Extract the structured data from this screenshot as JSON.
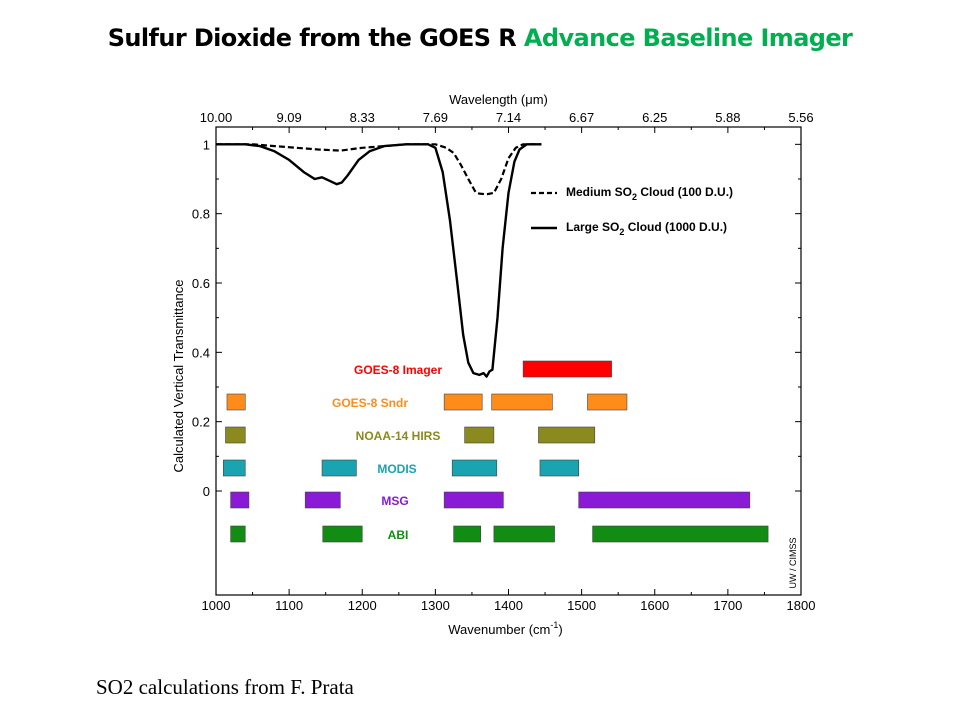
{
  "slide": {
    "title_main": "Sulfur Dioxide from the GOES R ",
    "title_accent": "Advance Baseline Imager",
    "credit": "SO2 calculations from F. Prata"
  },
  "colors": {
    "title_accent": "#00b050",
    "goes8_imager": "#ff0000",
    "goes8_sndr": "#ff8c1a",
    "noaa14_hirs": "#8a8a1e",
    "modis": "#1aa3b0",
    "msg": "#8a1ad6",
    "abi": "#128c12"
  },
  "chart_data": {
    "type": "line",
    "xlabel": "Wavenumber (cm",
    "xlabel_sup": "-1",
    "xlabel_end": ")",
    "ylabel": "Calculated Vertical Transmittance",
    "xlim": [
      1000,
      1800
    ],
    "ylim": [
      -0.3,
      1.05
    ],
    "x_ticks": [
      1000,
      1100,
      1200,
      1300,
      1400,
      1500,
      1600,
      1700,
      1800
    ],
    "x_tick_labels": [
      "1000",
      "1100",
      "1200",
      "1300",
      "1400",
      "1500",
      "1600",
      "1700",
      "1800"
    ],
    "y_ticks": [
      0,
      0.2,
      0.4,
      0.6,
      0.8,
      1
    ],
    "y_tick_labels": [
      "0",
      "0.2",
      "0.4",
      "0.6",
      "0.8",
      "1"
    ],
    "top_axis": {
      "label": "Wavelength (μm)",
      "ticks": [
        1000,
        1100,
        1200,
        1300,
        1400,
        1500,
        1600,
        1700,
        1800
      ],
      "tick_labels": [
        "10.00",
        "9.09",
        "8.33",
        "7.69",
        "7.14",
        "6.67",
        "6.25",
        "5.88",
        "5.56"
      ]
    },
    "series": [
      {
        "name_prefix": "Medium SO",
        "name_sub": "2",
        "name_suffix": " Cloud (100 D.U.)",
        "style": "dashed",
        "x": [
          1000,
          1050,
          1080,
          1110,
          1140,
          1170,
          1200,
          1230,
          1260,
          1300,
          1315,
          1325,
          1335,
          1345,
          1355,
          1360,
          1370,
          1380,
          1390,
          1400,
          1410,
          1420,
          1445
        ],
        "y": [
          1.0,
          1.0,
          0.995,
          0.99,
          0.985,
          0.982,
          0.99,
          0.995,
          1.0,
          1.0,
          0.99,
          0.975,
          0.94,
          0.9,
          0.862,
          0.858,
          0.856,
          0.86,
          0.9,
          0.96,
          0.99,
          1.0,
          1.0
        ]
      },
      {
        "name_prefix": "Large SO",
        "name_sub": "2",
        "name_suffix": " Cloud (1000 D.U.)",
        "style": "solid",
        "x": [
          1000,
          1040,
          1060,
          1080,
          1100,
          1120,
          1135,
          1145,
          1155,
          1165,
          1172,
          1180,
          1195,
          1210,
          1230,
          1260,
          1290,
          1300,
          1310,
          1320,
          1330,
          1338,
          1345,
          1352,
          1360,
          1366,
          1370,
          1374,
          1378,
          1385,
          1392,
          1400,
          1408,
          1415,
          1425,
          1445
        ],
        "y": [
          1.0,
          1.0,
          0.995,
          0.98,
          0.955,
          0.92,
          0.9,
          0.905,
          0.895,
          0.885,
          0.89,
          0.91,
          0.955,
          0.98,
          0.995,
          1.0,
          1.0,
          0.99,
          0.92,
          0.78,
          0.6,
          0.45,
          0.37,
          0.34,
          0.335,
          0.34,
          0.33,
          0.345,
          0.35,
          0.5,
          0.7,
          0.86,
          0.95,
          0.985,
          1.0,
          1.0
        ]
      }
    ],
    "instruments": [
      {
        "name": "GOES-8 Imager",
        "color_key": "goes8_imager",
        "bands": [
          [
            1420,
            1541
          ]
        ]
      },
      {
        "name": "GOES-8 Sndr",
        "color_key": "goes8_sndr",
        "bands": [
          [
            1015,
            1040
          ],
          [
            1312,
            1364
          ],
          [
            1377,
            1460
          ],
          [
            1508,
            1562
          ]
        ]
      },
      {
        "name": "NOAA-14 HIRS",
        "color_key": "noaa14_hirs",
        "bands": [
          [
            1013,
            1040
          ],
          [
            1340,
            1380
          ],
          [
            1441,
            1518
          ]
        ]
      },
      {
        "name": "MODIS",
        "color_key": "modis",
        "bands": [
          [
            1010,
            1040
          ],
          [
            1145,
            1192
          ],
          [
            1323,
            1384
          ],
          [
            1443,
            1496
          ]
        ]
      },
      {
        "name": "MSG",
        "color_key": "msg",
        "bands": [
          [
            1020,
            1045
          ],
          [
            1122,
            1170
          ],
          [
            1312,
            1393
          ],
          [
            1496,
            1730
          ]
        ]
      },
      {
        "name": "ABI",
        "color_key": "abi",
        "bands": [
          [
            1020,
            1040
          ],
          [
            1146,
            1200
          ],
          [
            1325,
            1362
          ],
          [
            1380,
            1463
          ],
          [
            1515,
            1755
          ]
        ]
      }
    ],
    "watermark": "UW / CIMSS"
  }
}
